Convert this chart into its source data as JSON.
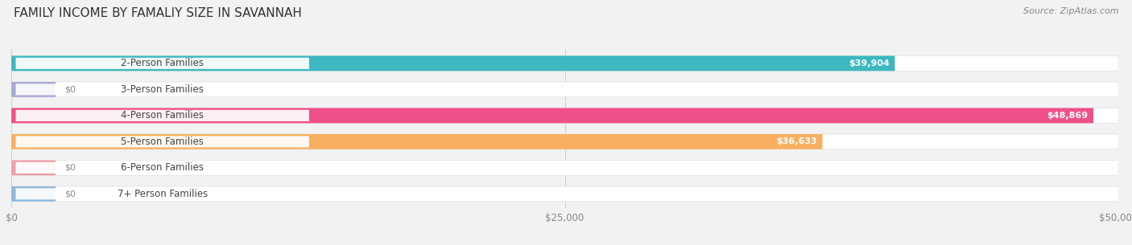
{
  "title": "FAMILY INCOME BY FAMALIY SIZE IN SAVANNAH",
  "source": "Source: ZipAtlas.com",
  "categories": [
    "2-Person Families",
    "3-Person Families",
    "4-Person Families",
    "5-Person Families",
    "6-Person Families",
    "7+ Person Families"
  ],
  "values": [
    39904,
    0,
    48869,
    36633,
    0,
    0
  ],
  "bar_colors": [
    "#3db8c0",
    "#a8a8d8",
    "#f0508a",
    "#f8b060",
    "#f0a0a8",
    "#90b8e0"
  ],
  "label_pill_colors": [
    "#3db8c0",
    "#a8a8d8",
    "#f0508a",
    "#f8b060",
    "#f0a0a8",
    "#90b8e0"
  ],
  "value_labels": [
    "$39,904",
    "$0",
    "$48,869",
    "$36,633",
    "$0",
    "$0"
  ],
  "xmax": 50000,
  "xticks": [
    0,
    25000,
    50000
  ],
  "xticklabels": [
    "$0",
    "$25,000",
    "$50,000"
  ],
  "background_color": "#f2f2f2",
  "bar_bg_color": "#ffffff",
  "bar_bg_border_color": "#e0e0e0",
  "title_fontsize": 11,
  "source_fontsize": 8,
  "label_fontsize": 8.5,
  "value_fontsize": 8
}
